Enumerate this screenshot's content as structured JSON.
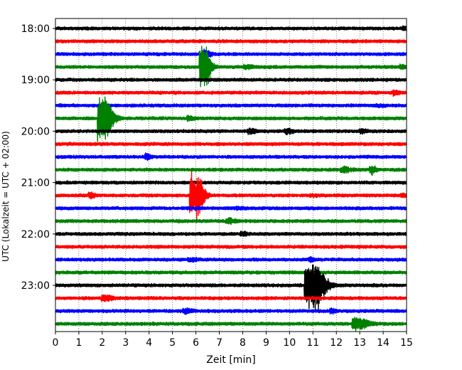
{
  "chart_data": {
    "type": "line",
    "title": "",
    "xlabel": "Zeit  [min]",
    "ylabel": "UTC (Lokalzeit = UTC + 02:00)",
    "xlim": [
      0,
      15
    ],
    "x_ticks": [
      "0",
      "1",
      "2",
      "3",
      "4",
      "5",
      "6",
      "7",
      "8",
      "9",
      "10",
      "11",
      "12",
      "13",
      "14",
      "15"
    ],
    "y_ticks": [
      "18:00",
      "19:00",
      "20:00",
      "21:00",
      "22:00",
      "23:00"
    ],
    "minutes_per_trace": 15,
    "trace_colors": [
      "#000000",
      "#ff0000",
      "#0000ff",
      "#008000"
    ],
    "grid": "vertical dotted at each minute",
    "traces": [
      {
        "start": "18:00",
        "color": "#000000",
        "events": [
          {
            "t": 14.9,
            "amp": 1.2,
            "dur": 0.3
          }
        ]
      },
      {
        "start": "18:15",
        "color": "#ff0000",
        "events": [
          {
            "t": 1.4,
            "amp": 1.0,
            "dur": 0.5
          }
        ]
      },
      {
        "start": "18:30",
        "color": "#0000ff",
        "events": [
          {
            "t": 3.0,
            "amp": 1.0,
            "dur": 0.6
          },
          {
            "t": 6.4,
            "amp": 1.6,
            "dur": 0.4
          }
        ]
      },
      {
        "start": "18:45",
        "color": "#008000",
        "events": [
          {
            "t": 6.3,
            "amp": 5.0,
            "dur": 0.5
          },
          {
            "t": 8.2,
            "amp": 1.2,
            "dur": 0.5
          },
          {
            "t": 14.8,
            "amp": 1.3,
            "dur": 0.3
          }
        ]
      },
      {
        "start": "19:00",
        "color": "#000000",
        "events": []
      },
      {
        "start": "19:15",
        "color": "#ff0000",
        "events": [
          {
            "t": 14.5,
            "amp": 1.3,
            "dur": 0.3
          }
        ]
      },
      {
        "start": "19:30",
        "color": "#0000ff",
        "events": [
          {
            "t": 13.8,
            "amp": 1.1,
            "dur": 0.5
          }
        ]
      },
      {
        "start": "19:45",
        "color": "#008000",
        "events": [
          {
            "t": 2.0,
            "amp": 4.8,
            "dur": 0.7
          },
          {
            "t": 5.7,
            "amp": 1.3,
            "dur": 0.3
          }
        ]
      },
      {
        "start": "20:00",
        "color": "#000000",
        "events": [
          {
            "t": 8.3,
            "amp": 1.3,
            "dur": 0.4
          },
          {
            "t": 9.9,
            "amp": 1.3,
            "dur": 0.4
          },
          {
            "t": 13.1,
            "amp": 1.2,
            "dur": 0.4
          }
        ]
      },
      {
        "start": "20:15",
        "color": "#ff0000",
        "events": []
      },
      {
        "start": "20:30",
        "color": "#0000ff",
        "events": [
          {
            "t": 3.9,
            "amp": 1.4,
            "dur": 0.3
          }
        ]
      },
      {
        "start": "20:45",
        "color": "#008000",
        "events": [
          {
            "t": 12.3,
            "amp": 1.3,
            "dur": 0.5
          },
          {
            "t": 13.5,
            "amp": 1.6,
            "dur": 0.3
          }
        ]
      },
      {
        "start": "21:00",
        "color": "#000000",
        "events": []
      },
      {
        "start": "21:15",
        "color": "#ff0000",
        "events": [
          {
            "t": 5.9,
            "amp": 6.0,
            "dur": 0.6
          },
          {
            "t": 1.5,
            "amp": 1.3,
            "dur": 0.3
          },
          {
            "t": 11.0,
            "amp": 1.1,
            "dur": 0.5
          },
          {
            "t": 14.8,
            "amp": 1.2,
            "dur": 0.3
          }
        ]
      },
      {
        "start": "21:30",
        "color": "#0000ff",
        "events": [
          {
            "t": 7.7,
            "amp": 1.1,
            "dur": 0.5
          }
        ]
      },
      {
        "start": "21:45",
        "color": "#008000",
        "events": [
          {
            "t": 7.4,
            "amp": 1.3,
            "dur": 0.5
          }
        ]
      },
      {
        "start": "22:00",
        "color": "#000000",
        "events": [
          {
            "t": 8.0,
            "amp": 1.2,
            "dur": 0.4
          }
        ]
      },
      {
        "start": "22:15",
        "color": "#ff0000",
        "events": []
      },
      {
        "start": "22:30",
        "color": "#0000ff",
        "events": [
          {
            "t": 5.8,
            "amp": 1.2,
            "dur": 0.5
          },
          {
            "t": 10.9,
            "amp": 1.3,
            "dur": 0.3
          }
        ]
      },
      {
        "start": "22:45",
        "color": "#008000",
        "events": []
      },
      {
        "start": "23:00",
        "color": "#000000",
        "events": [
          {
            "t": 10.9,
            "amp": 5.5,
            "dur": 0.9
          }
        ]
      },
      {
        "start": "23:15",
        "color": "#ff0000",
        "events": [
          {
            "t": 2.1,
            "amp": 1.4,
            "dur": 0.5
          }
        ]
      },
      {
        "start": "23:30",
        "color": "#0000ff",
        "events": [
          {
            "t": 5.6,
            "amp": 1.3,
            "dur": 0.5
          },
          {
            "t": 11.8,
            "amp": 1.3,
            "dur": 0.3
          }
        ]
      },
      {
        "start": "23:45",
        "color": "#008000",
        "events": [
          {
            "t": 12.9,
            "amp": 1.8,
            "dur": 0.8
          }
        ]
      }
    ]
  }
}
